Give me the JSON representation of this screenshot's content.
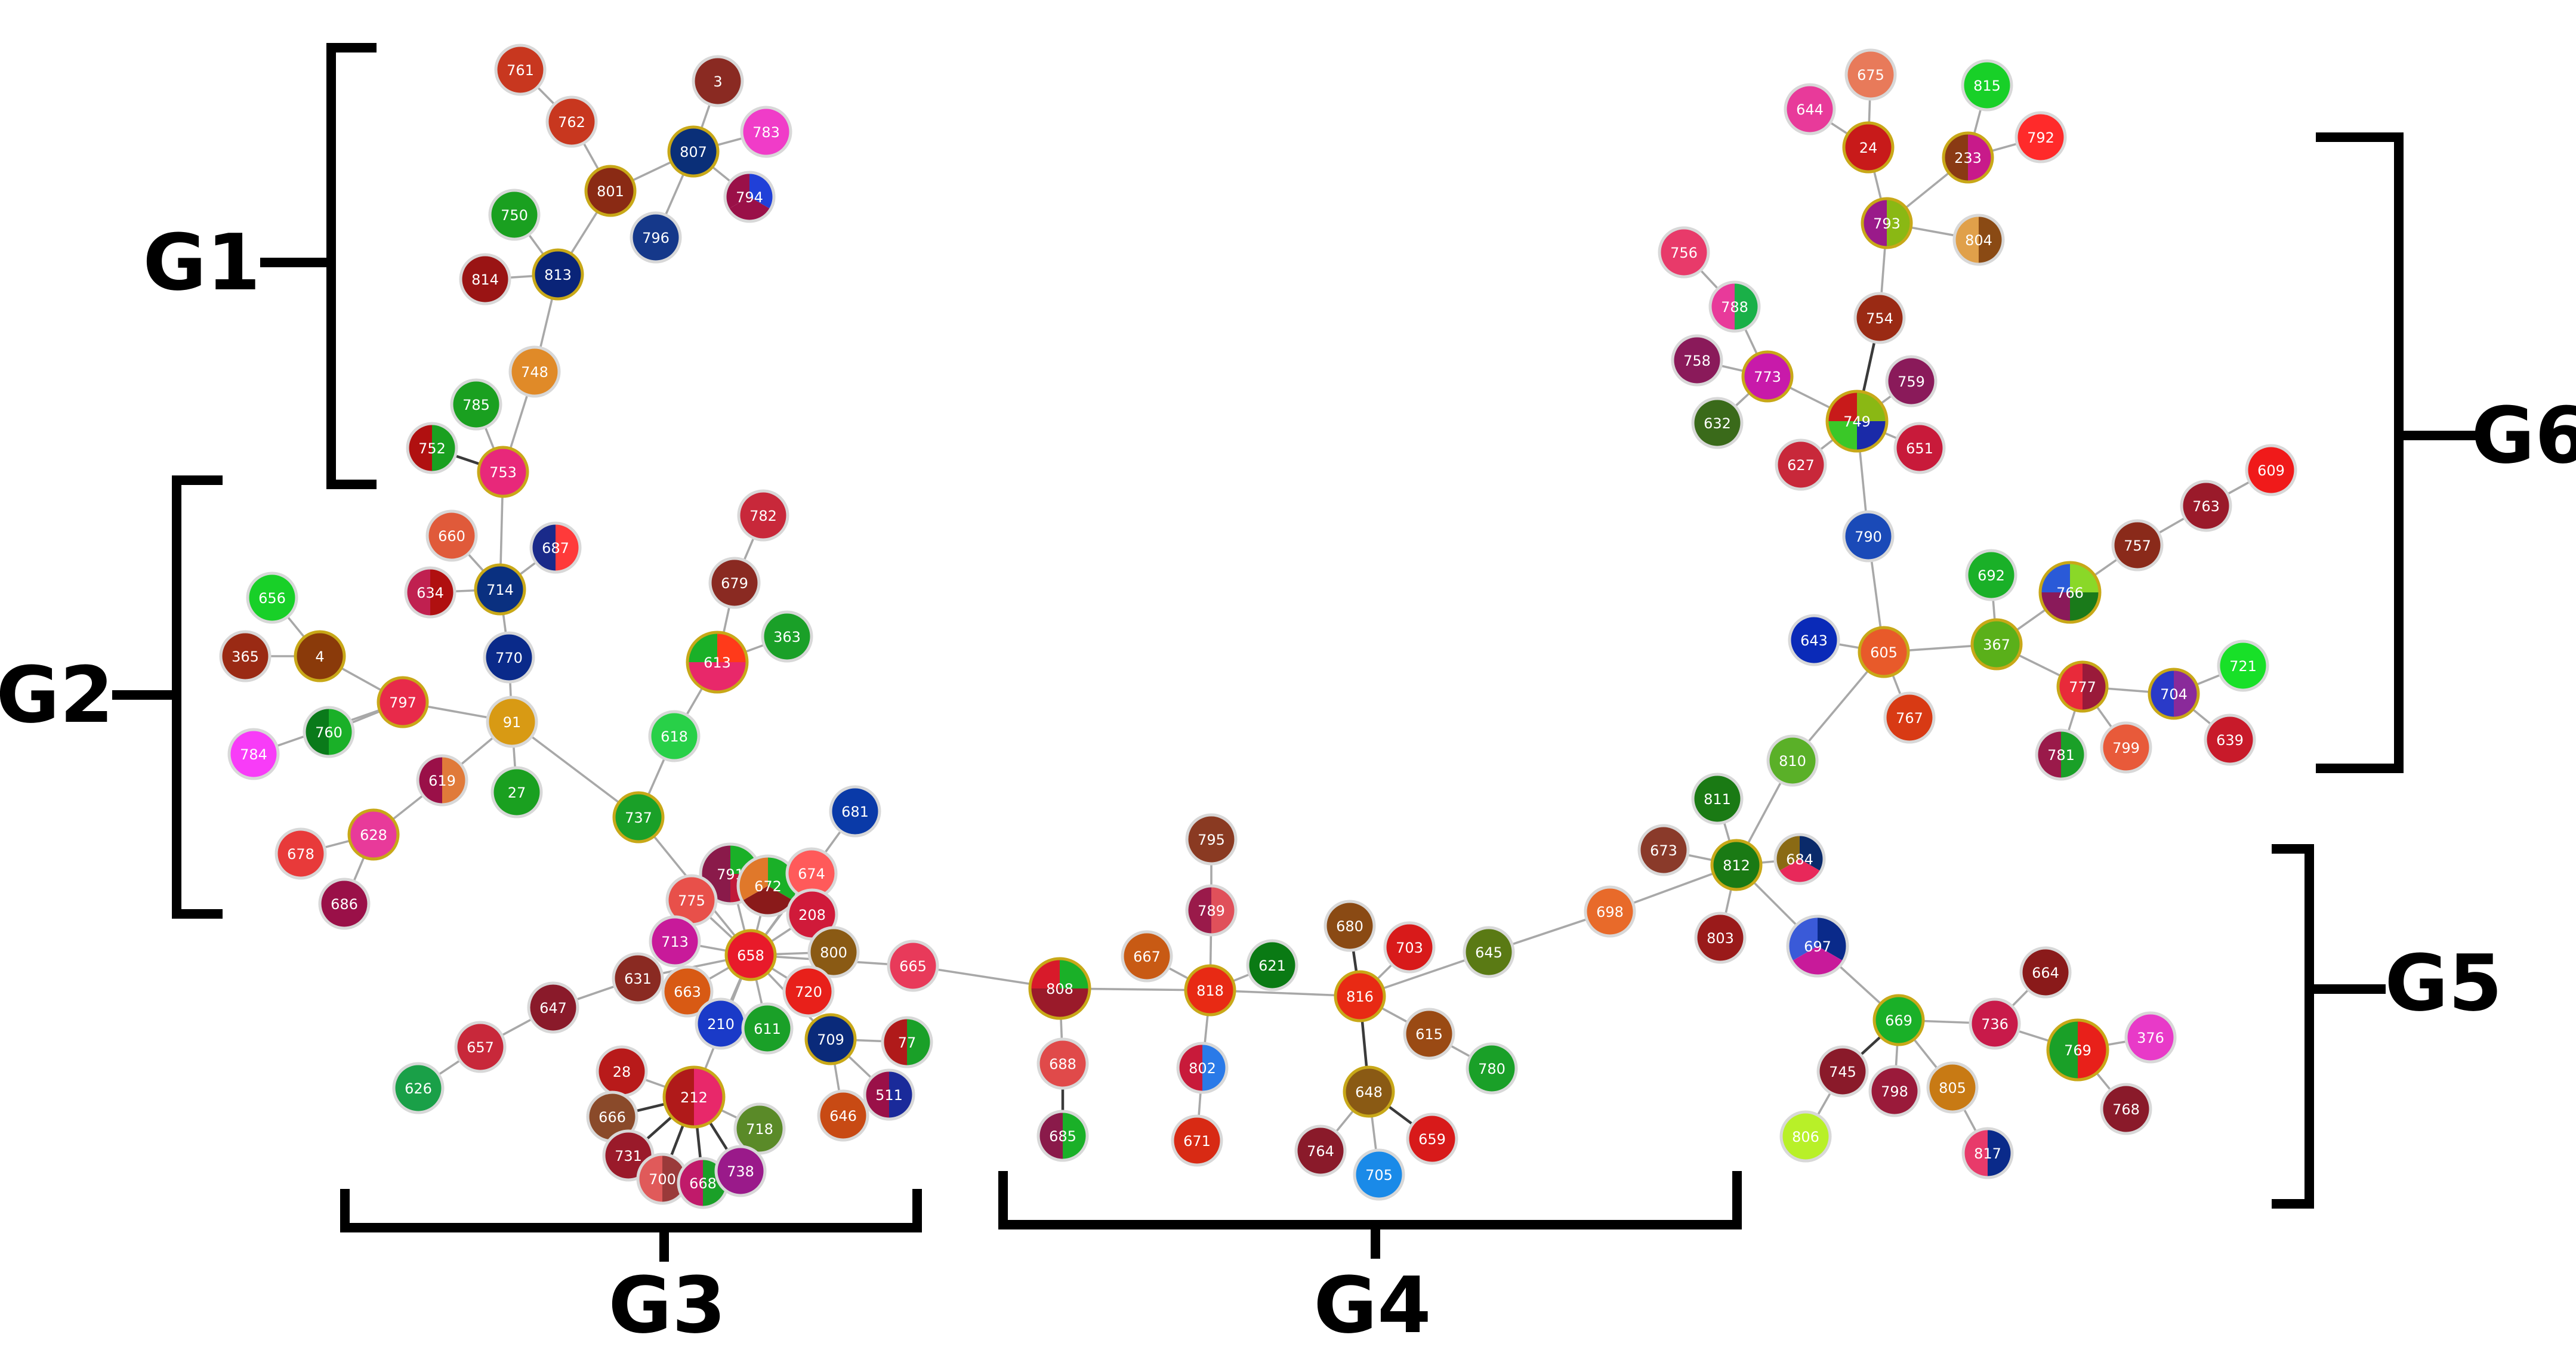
{
  "groups": [
    {
      "id": "g1",
      "label": "G1"
    },
    {
      "id": "g2",
      "label": "G2"
    },
    {
      "id": "g3",
      "label": "G3"
    },
    {
      "id": "g4",
      "label": "G4"
    },
    {
      "id": "g5",
      "label": "G5"
    },
    {
      "id": "g6",
      "label": "G6"
    }
  ],
  "nodes": [
    {
      "id": "761",
      "colors": [
        "#c8371f"
      ]
    },
    {
      "id": "762",
      "colors": [
        "#c8371f"
      ]
    },
    {
      "id": "3",
      "colors": [
        "#8a2a22"
      ]
    },
    {
      "id": "783",
      "colors": [
        "#f03cc8"
      ]
    },
    {
      "id": "807",
      "colors": [
        "#0a2f78"
      ],
      "ring": "#c8a818"
    },
    {
      "id": "801",
      "colors": [
        "#8a2a14"
      ],
      "ring": "#c8a818"
    },
    {
      "id": "794",
      "colors": [
        "#2040d8",
        "#9a1048",
        "#9a1048"
      ]
    },
    {
      "id": "750",
      "colors": [
        "#1aa020"
      ]
    },
    {
      "id": "796",
      "colors": [
        "#15388a"
      ]
    },
    {
      "id": "813",
      "colors": [
        "#0a2478"
      ],
      "ring": "#c8a818"
    },
    {
      "id": "814",
      "colors": [
        "#9a1414"
      ]
    },
    {
      "id": "748",
      "colors": [
        "#e08a28"
      ]
    },
    {
      "id": "785",
      "colors": [
        "#1aa020"
      ]
    },
    {
      "id": "752",
      "colors": [
        "#1aa020",
        "#b01010"
      ]
    },
    {
      "id": "753",
      "colors": [
        "#e8287a"
      ],
      "ring": "#c8a818"
    },
    {
      "id": "660",
      "colors": [
        "#e05a3a"
      ]
    },
    {
      "id": "687",
      "colors": [
        "#ff3a3a",
        "#1a2a8a"
      ]
    },
    {
      "id": "634",
      "colors": [
        "#b01010",
        "#c02050"
      ]
    },
    {
      "id": "714",
      "colors": [
        "#0a3080"
      ],
      "ring": "#c8a818"
    },
    {
      "id": "656",
      "colors": [
        "#18d028"
      ]
    },
    {
      "id": "4",
      "colors": [
        "#8a3a0a"
      ],
      "ring": "#c8a818"
    },
    {
      "id": "365",
      "colors": [
        "#9a2a14"
      ]
    },
    {
      "id": "770",
      "colors": [
        "#0a2a8a"
      ]
    },
    {
      "id": "797",
      "colors": [
        "#e82a4a"
      ],
      "ring": "#c8a818"
    },
    {
      "id": "760",
      "colors": [
        "#1ab028",
        "#0a7a1a"
      ]
    },
    {
      "id": "91",
      "colors": [
        "#d89a14"
      ]
    },
    {
      "id": "784",
      "colors": [
        "#f83cf8"
      ]
    },
    {
      "id": "619",
      "colors": [
        "#e07a3a",
        "#9a1048"
      ]
    },
    {
      "id": "27",
      "colors": [
        "#1aa020"
      ]
    },
    {
      "id": "628",
      "colors": [
        "#e83a9a"
      ],
      "ring": "#c8a818"
    },
    {
      "id": "678",
      "colors": [
        "#e83a3a"
      ]
    },
    {
      "id": "686",
      "colors": [
        "#9a1048"
      ]
    },
    {
      "id": "782",
      "colors": [
        "#c8283a"
      ]
    },
    {
      "id": "679",
      "colors": [
        "#8a2a22"
      ]
    },
    {
      "id": "363",
      "colors": [
        "#1aa028"
      ]
    },
    {
      "id": "613",
      "colors": [
        "#ff3a1a",
        "#e8286a",
        "#e8286a",
        "#1ab028"
      ],
      "ring": "#c8a818"
    },
    {
      "id": "618",
      "colors": [
        "#28d048"
      ]
    },
    {
      "id": "737",
      "colors": [
        "#1aa028"
      ],
      "ring": "#c8a818"
    },
    {
      "id": "681",
      "colors": [
        "#0a3aa8"
      ]
    },
    {
      "id": "791",
      "colors": [
        "#1ab028",
        "#c01a3a",
        "#8a1a4a",
        "#8a1a4a"
      ]
    },
    {
      "id": "672",
      "colors": [
        "#1ab028",
        "#8a1a1a",
        "#e0782a"
      ]
    },
    {
      "id": "674",
      "colors": [
        "#ff5a5a"
      ]
    },
    {
      "id": "775",
      "colors": [
        "#e8504a"
      ]
    },
    {
      "id": "208",
      "colors": [
        "#d01a3a"
      ]
    },
    {
      "id": "713",
      "colors": [
        "#c81a9a"
      ]
    },
    {
      "id": "658",
      "colors": [
        "#e81a2a"
      ],
      "ring": "#c8a818"
    },
    {
      "id": "800",
      "colors": [
        "#8a5a14"
      ]
    },
    {
      "id": "665",
      "colors": [
        "#e83a5a"
      ]
    },
    {
      "id": "631",
      "colors": [
        "#8a2a22"
      ]
    },
    {
      "id": "663",
      "colors": [
        "#d85a14"
      ]
    },
    {
      "id": "720",
      "colors": [
        "#e8201a"
      ]
    },
    {
      "id": "647",
      "colors": [
        "#8a1a2a"
      ]
    },
    {
      "id": "210",
      "colors": [
        "#1a3ac8"
      ]
    },
    {
      "id": "611",
      "colors": [
        "#1aa028"
      ]
    },
    {
      "id": "709",
      "colors": [
        "#0a2a7a"
      ],
      "ring": "#c8a818"
    },
    {
      "id": "77",
      "colors": [
        "#1aa028",
        "#b01a1a"
      ]
    },
    {
      "id": "657",
      "colors": [
        "#c8283a"
      ]
    },
    {
      "id": "28",
      "colors": [
        "#b81a1a"
      ]
    },
    {
      "id": "212",
      "colors": [
        "#e8286a",
        "#b01a1a"
      ],
      "ring": "#c8a818"
    },
    {
      "id": "511",
      "colors": [
        "#1a2a9a",
        "#9a1048"
      ]
    },
    {
      "id": "646",
      "colors": [
        "#c84a14"
      ]
    },
    {
      "id": "626",
      "colors": [
        "#1aa048"
      ]
    },
    {
      "id": "666",
      "colors": [
        "#8a4a2a"
      ]
    },
    {
      "id": "718",
      "colors": [
        "#5a8a28"
      ]
    },
    {
      "id": "731",
      "colors": [
        "#9a1a2a"
      ]
    },
    {
      "id": "700",
      "colors": [
        "#9a3a3a",
        "#e05a5a"
      ]
    },
    {
      "id": "668",
      "colors": [
        "#1aa028",
        "#c01a6a"
      ]
    },
    {
      "id": "738",
      "colors": [
        "#9a1a8a"
      ]
    },
    {
      "id": "795",
      "colors": [
        "#8a3a22"
      ]
    },
    {
      "id": "789",
      "colors": [
        "#e0505a",
        "#9a1a4a"
      ]
    },
    {
      "id": "680",
      "colors": [
        "#8a4a14"
      ]
    },
    {
      "id": "667",
      "colors": [
        "#c85a14"
      ]
    },
    {
      "id": "621",
      "colors": [
        "#0a7a14"
      ]
    },
    {
      "id": "703",
      "colors": [
        "#d81a1a"
      ]
    },
    {
      "id": "808",
      "colors": [
        "#1ab028",
        "#9a1a2a",
        "#9a1a2a",
        "#d81a2a"
      ],
      "ring": "#c8a818"
    },
    {
      "id": "818",
      "colors": [
        "#e82a14"
      ],
      "ring": "#c8a818"
    },
    {
      "id": "816",
      "colors": [
        "#e82a14"
      ],
      "ring": "#c8a818"
    },
    {
      "id": "645",
      "colors": [
        "#5a7a14"
      ]
    },
    {
      "id": "688",
      "colors": [
        "#e04a4a"
      ]
    },
    {
      "id": "802",
      "colors": [
        "#2a7ae8",
        "#c81a3a"
      ]
    },
    {
      "id": "615",
      "colors": [
        "#9a4a14"
      ]
    },
    {
      "id": "780",
      "colors": [
        "#1aa028"
      ]
    },
    {
      "id": "648",
      "colors": [
        "#8a5a14"
      ],
      "ring": "#c8a818"
    },
    {
      "id": "671",
      "colors": [
        "#d82a14"
      ]
    },
    {
      "id": "685",
      "colors": [
        "#1ab028",
        "#8a1a4a"
      ]
    },
    {
      "id": "764",
      "colors": [
        "#8a1a2a"
      ]
    },
    {
      "id": "659",
      "colors": [
        "#d81a1a"
      ]
    },
    {
      "id": "705",
      "colors": [
        "#1a8ae8"
      ]
    },
    {
      "id": "675",
      "colors": [
        "#e87a5a"
      ]
    },
    {
      "id": "815",
      "colors": [
        "#18d028"
      ]
    },
    {
      "id": "644",
      "colors": [
        "#e83a9a"
      ]
    },
    {
      "id": "24",
      "colors": [
        "#c81a1a"
      ],
      "ring": "#c8a818"
    },
    {
      "id": "233",
      "colors": [
        "#c81a8a",
        "#8a3a14"
      ],
      "ring": "#c8a818"
    },
    {
      "id": "792",
      "colors": [
        "#ff2a2a"
      ]
    },
    {
      "id": "793",
      "colors": [
        "#8ab814",
        "#9a1a8a"
      ],
      "ring": "#c8a818"
    },
    {
      "id": "804",
      "colors": [
        "#8a4a14",
        "#e0a04a"
      ]
    },
    {
      "id": "756",
      "colors": [
        "#e83a6a"
      ]
    },
    {
      "id": "788",
      "colors": [
        "#1ab048",
        "#e83a9a"
      ]
    },
    {
      "id": "754",
      "colors": [
        "#9a2a14"
      ]
    },
    {
      "id": "758",
      "colors": [
        "#8a1a5a"
      ]
    },
    {
      "id": "773",
      "colors": [
        "#c81aaa"
      ],
      "ring": "#c8a818"
    },
    {
      "id": "759",
      "colors": [
        "#8a1a5a"
      ]
    },
    {
      "id": "632",
      "colors": [
        "#3a6a1a"
      ]
    },
    {
      "id": "749",
      "colors": [
        "#8ab814",
        "#1a2aa8",
        "#3ac828",
        "#c81a1a"
      ],
      "ring": "#c8a818"
    },
    {
      "id": "627",
      "colors": [
        "#c8283a"
      ]
    },
    {
      "id": "651",
      "colors": [
        "#c81a3a"
      ]
    },
    {
      "id": "609",
      "colors": [
        "#f01a1a"
      ]
    },
    {
      "id": "763",
      "colors": [
        "#9a1a2a"
      ]
    },
    {
      "id": "790",
      "colors": [
        "#1a4ab8"
      ]
    },
    {
      "id": "757",
      "colors": [
        "#8a2a1a"
      ]
    },
    {
      "id": "692",
      "colors": [
        "#1ab028"
      ]
    },
    {
      "id": "766",
      "colors": [
        "#8ad828",
        "#1a7a1a",
        "#8a1a5a",
        "#2a5ad8"
      ],
      "ring": "#c8a818"
    },
    {
      "id": "643",
      "colors": [
        "#0a2ab8"
      ]
    },
    {
      "id": "605",
      "colors": [
        "#e85a2a"
      ],
      "ring": "#c8a818"
    },
    {
      "id": "367",
      "colors": [
        "#5ab01a"
      ],
      "ring": "#c8a818"
    },
    {
      "id": "721",
      "colors": [
        "#18e028"
      ]
    },
    {
      "id": "777",
      "colors": [
        "#9a1a3a",
        "#e82a3a"
      ],
      "ring": "#c8a818"
    },
    {
      "id": "704",
      "colors": [
        "#8a2a9a",
        "#2a3ac8"
      ],
      "ring": "#c8a818"
    },
    {
      "id": "767",
      "colors": [
        "#d83a14"
      ]
    },
    {
      "id": "639",
      "colors": [
        "#c81a2a"
      ]
    },
    {
      "id": "810",
      "colors": [
        "#5ab028"
      ]
    },
    {
      "id": "781",
      "colors": [
        "#1aa028",
        "#9a1a4a"
      ]
    },
    {
      "id": "799",
      "colors": [
        "#e85a3a"
      ]
    },
    {
      "id": "811",
      "colors": [
        "#1a7a14"
      ]
    },
    {
      "id": "673",
      "colors": [
        "#8a3a2a"
      ]
    },
    {
      "id": "812",
      "colors": [
        "#1a7a14"
      ],
      "ring": "#c8a818"
    },
    {
      "id": "684",
      "colors": [
        "#0a2a6a",
        "#e8285a",
        "#8a6a14"
      ]
    },
    {
      "id": "698",
      "colors": [
        "#e86a2a"
      ]
    },
    {
      "id": "803",
      "colors": [
        "#9a1a1a"
      ]
    },
    {
      "id": "697",
      "colors": [
        "#0a2a8a",
        "#c81a9a",
        "#3a5ad8"
      ]
    },
    {
      "id": "664",
      "colors": [
        "#8a1a1a"
      ]
    },
    {
      "id": "669",
      "colors": [
        "#1ab028"
      ],
      "ring": "#c8a818"
    },
    {
      "id": "736",
      "colors": [
        "#c81a4a"
      ]
    },
    {
      "id": "769",
      "colors": [
        "#e8201a",
        "#1aa028"
      ],
      "ring": "#c8a818"
    },
    {
      "id": "376",
      "colors": [
        "#e83ac8"
      ]
    },
    {
      "id": "745",
      "colors": [
        "#8a1a2a"
      ]
    },
    {
      "id": "798",
      "colors": [
        "#9a1a3a"
      ]
    },
    {
      "id": "805",
      "colors": [
        "#c87a14"
      ]
    },
    {
      "id": "768",
      "colors": [
        "#8a1a2a"
      ]
    },
    {
      "id": "806",
      "colors": [
        "#b8f028"
      ]
    },
    {
      "id": "817",
      "colors": [
        "#0a2a8a",
        "#e83a6a"
      ]
    }
  ],
  "edges": [
    [
      "761",
      "762"
    ],
    [
      "762",
      "801"
    ],
    [
      "3",
      "807"
    ],
    [
      "807",
      "783"
    ],
    [
      "807",
      "801"
    ],
    [
      "807",
      "794"
    ],
    [
      "807",
      "796"
    ],
    [
      "801",
      "813"
    ],
    [
      "750",
      "813"
    ],
    [
      "813",
      "814"
    ],
    [
      "813",
      "748"
    ],
    [
      "748",
      "753"
    ],
    [
      "785",
      "753"
    ],
    [
      "752",
      "753",
      1
    ],
    [
      "753",
      "714"
    ],
    [
      "660",
      "714"
    ],
    [
      "687",
      "714"
    ],
    [
      "634",
      "714"
    ],
    [
      "714",
      "770"
    ],
    [
      "770",
      "91"
    ],
    [
      "656",
      "4"
    ],
    [
      "365",
      "4"
    ],
    [
      "4",
      "797"
    ],
    [
      "797",
      "91"
    ],
    [
      "760",
      "797"
    ],
    [
      "784",
      "797"
    ],
    [
      "91",
      "27"
    ],
    [
      "91",
      "619"
    ],
    [
      "619",
      "628"
    ],
    [
      "628",
      "678"
    ],
    [
      "628",
      "686"
    ],
    [
      "91",
      "737"
    ],
    [
      "782",
      "679"
    ],
    [
      "679",
      "613"
    ],
    [
      "363",
      "613"
    ],
    [
      "613",
      "618"
    ],
    [
      "618",
      "737"
    ],
    [
      "737",
      "658"
    ],
    [
      "681",
      "658"
    ],
    [
      "791",
      "658"
    ],
    [
      "672",
      "658"
    ],
    [
      "674",
      "658"
    ],
    [
      "775",
      "658"
    ],
    [
      "208",
      "658"
    ],
    [
      "713",
      "658"
    ],
    [
      "800",
      "658"
    ],
    [
      "665",
      "658"
    ],
    [
      "631",
      "658"
    ],
    [
      "663",
      "658"
    ],
    [
      "720",
      "658"
    ],
    [
      "210",
      "658"
    ],
    [
      "611",
      "658"
    ],
    [
      "709",
      "658"
    ],
    [
      "77",
      "709"
    ],
    [
      "511",
      "709"
    ],
    [
      "646",
      "709"
    ],
    [
      "647",
      "631"
    ],
    [
      "657",
      "647"
    ],
    [
      "626",
      "657"
    ],
    [
      "212",
      "658"
    ],
    [
      "28",
      "212"
    ],
    [
      "666",
      "212",
      1
    ],
    [
      "731",
      "212",
      1
    ],
    [
      "700",
      "212",
      1
    ],
    [
      "668",
      "212",
      1
    ],
    [
      "738",
      "212",
      1
    ],
    [
      "718",
      "212"
    ],
    [
      "665",
      "808"
    ],
    [
      "808",
      "688"
    ],
    [
      "688",
      "685",
      1
    ],
    [
      "808",
      "818"
    ],
    [
      "795",
      "789"
    ],
    [
      "789",
      "818"
    ],
    [
      "667",
      "818"
    ],
    [
      "818",
      "621"
    ],
    [
      "818",
      "802"
    ],
    [
      "802",
      "671"
    ],
    [
      "818",
      "816"
    ],
    [
      "680",
      "816",
      1
    ],
    [
      "703",
      "816"
    ],
    [
      "816",
      "645"
    ],
    [
      "816",
      "615"
    ],
    [
      "615",
      "780"
    ],
    [
      "816",
      "648",
      1
    ],
    [
      "648",
      "764"
    ],
    [
      "648",
      "705"
    ],
    [
      "648",
      "659",
      1
    ],
    [
      "645",
      "698"
    ],
    [
      "698",
      "812"
    ],
    [
      "811",
      "812"
    ],
    [
      "673",
      "812"
    ],
    [
      "812",
      "684"
    ],
    [
      "812",
      "803"
    ],
    [
      "812",
      "697"
    ],
    [
      "812",
      "810"
    ],
    [
      "697",
      "669"
    ],
    [
      "669",
      "745",
      1
    ],
    [
      "669",
      "798"
    ],
    [
      "669",
      "736"
    ],
    [
      "669",
      "805"
    ],
    [
      "745",
      "806"
    ],
    [
      "805",
      "817"
    ],
    [
      "736",
      "664"
    ],
    [
      "736",
      "769"
    ],
    [
      "769",
      "376"
    ],
    [
      "769",
      "768"
    ],
    [
      "810",
      "605"
    ],
    [
      "605",
      "643"
    ],
    [
      "605",
      "767"
    ],
    [
      "605",
      "367"
    ],
    [
      "605",
      "790"
    ],
    [
      "367",
      "692"
    ],
    [
      "367",
      "766"
    ],
    [
      "766",
      "757"
    ],
    [
      "757",
      "763"
    ],
    [
      "763",
      "609"
    ],
    [
      "367",
      "777"
    ],
    [
      "777",
      "704"
    ],
    [
      "777",
      "781"
    ],
    [
      "777",
      "799"
    ],
    [
      "704",
      "721"
    ],
    [
      "704",
      "639"
    ],
    [
      "790",
      "749"
    ],
    [
      "749",
      "773"
    ],
    [
      "749",
      "759"
    ],
    [
      "749",
      "651"
    ],
    [
      "749",
      "627"
    ],
    [
      "749",
      "754",
      1
    ],
    [
      "754",
      "793"
    ],
    [
      "773",
      "788"
    ],
    [
      "773",
      "758"
    ],
    [
      "773",
      "632"
    ],
    [
      "788",
      "756"
    ],
    [
      "793",
      "24"
    ],
    [
      "793",
      "233"
    ],
    [
      "793",
      "804"
    ],
    [
      "24",
      "675"
    ],
    [
      "24",
      "644"
    ],
    [
      "233",
      "815"
    ],
    [
      "233",
      "792"
    ]
  ]
}
